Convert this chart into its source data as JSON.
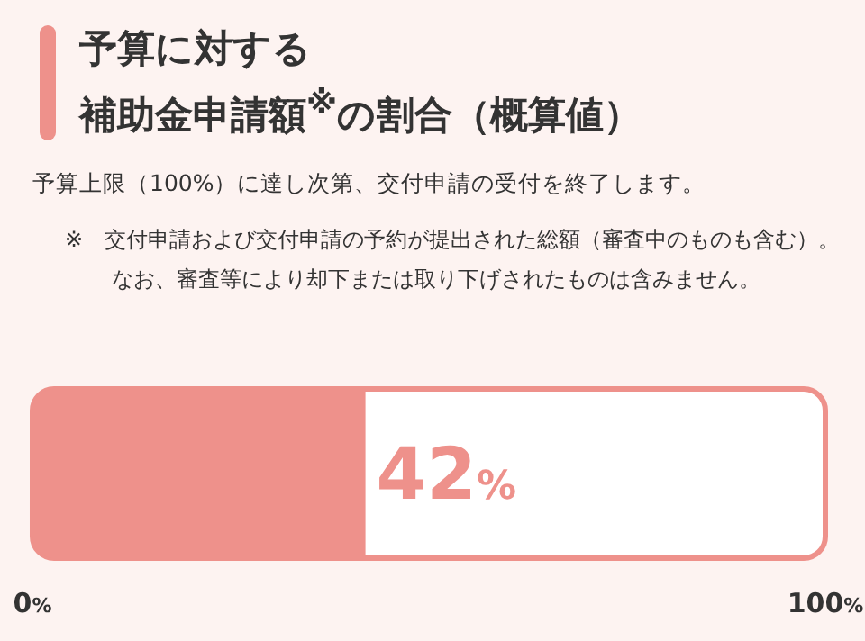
{
  "chart_data": {
    "type": "bar",
    "orientation": "horizontal",
    "title": "予算に対する補助金申請額$^{※}$の割合（概算値）",
    "subtitle": "予算上限（100%）に達し次第、交付申請の受付を終了します。",
    "annotations": [
      "※　交付申請および交付申請の予約が提出された総額（審査中のものも含む）。なお、審査等により却下または取り下げされたものは含みません。"
    ],
    "categories": [
      null
    ],
    "values": [
      42
    ],
    "color": "#ee918b",
    "value_labels": [
      "42%"
    ],
    "xlim": [
      0,
      100
    ],
    "xticks": [
      {
        "value": 0,
        "label": "0%"
      },
      {
        "value": 100,
        "label": "100%"
      }
    ]
  }
}
